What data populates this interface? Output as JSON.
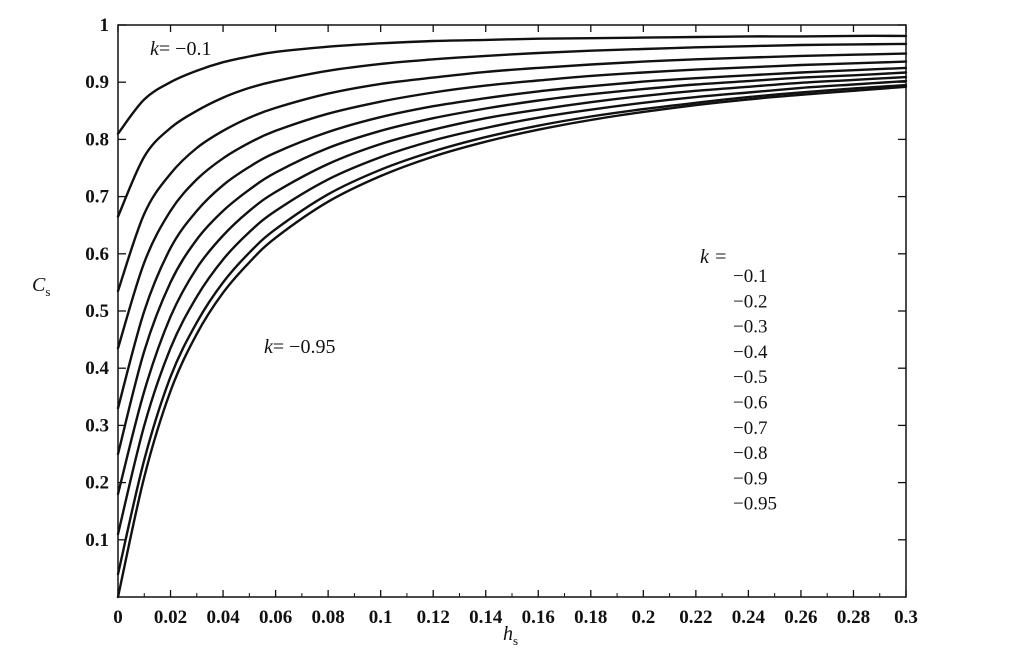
{
  "chart_data": {
    "type": "line",
    "xlabel": "h",
    "xlabel_sub": "s",
    "ylabel": "C",
    "ylabel_sub": "s",
    "xlim": [
      0,
      0.3
    ],
    "ylim": [
      0,
      1
    ],
    "x_ticks": [
      "0",
      "0.02",
      "0.04",
      "0.06",
      "0.08",
      "0.1",
      "0.12",
      "0.14",
      "0.16",
      "0.18",
      "0.2",
      "0.22",
      "0.24",
      "0.26",
      "0.28",
      "0.3"
    ],
    "y_ticks": [
      "0.1",
      "0.2",
      "0.3",
      "0.4",
      "0.5",
      "0.6",
      "0.7",
      "0.8",
      "0.9",
      "1"
    ],
    "grid": false,
    "legend_title": "k =",
    "legend_entries": [
      "−0.1",
      "−0.2",
      "−0.3",
      "−0.4",
      "−0.5",
      "−0.6",
      "−0.7",
      "−0.8",
      "−0.9",
      "−0.95"
    ],
    "annotation_top_k": "k",
    "annotation_top_val": "= −0.1",
    "annotation_bottom_k": "k",
    "annotation_bottom_val": "= −0.95",
    "x": [
      0,
      0.01,
      0.02,
      0.03,
      0.04,
      0.05,
      0.06,
      0.08,
      0.1,
      0.12,
      0.14,
      0.16,
      0.18,
      0.2,
      0.22,
      0.24,
      0.26,
      0.28,
      0.3
    ],
    "series": [
      {
        "k": -0.1,
        "values": [
          0.81,
          0.87,
          0.9,
          0.92,
          0.935,
          0.945,
          0.953,
          0.962,
          0.968,
          0.972,
          0.974,
          0.976,
          0.977,
          0.978,
          0.979,
          0.98,
          0.98,
          0.981,
          0.981
        ]
      },
      {
        "k": -0.2,
        "values": [
          0.665,
          0.77,
          0.82,
          0.85,
          0.873,
          0.89,
          0.902,
          0.92,
          0.932,
          0.94,
          0.946,
          0.951,
          0.955,
          0.958,
          0.961,
          0.963,
          0.965,
          0.966,
          0.967
        ]
      },
      {
        "k": -0.3,
        "values": [
          0.535,
          0.67,
          0.74,
          0.785,
          0.815,
          0.838,
          0.855,
          0.88,
          0.897,
          0.908,
          0.918,
          0.925,
          0.931,
          0.936,
          0.94,
          0.943,
          0.946,
          0.948,
          0.95
        ]
      },
      {
        "k": -0.4,
        "values": [
          0.435,
          0.585,
          0.675,
          0.73,
          0.767,
          0.794,
          0.815,
          0.845,
          0.866,
          0.882,
          0.894,
          0.903,
          0.911,
          0.917,
          0.922,
          0.926,
          0.93,
          0.933,
          0.936
        ]
      },
      {
        "k": -0.5,
        "values": [
          0.33,
          0.5,
          0.61,
          0.675,
          0.72,
          0.752,
          0.777,
          0.813,
          0.839,
          0.858,
          0.872,
          0.884,
          0.893,
          0.901,
          0.907,
          0.912,
          0.917,
          0.921,
          0.925
        ]
      },
      {
        "k": -0.6,
        "values": [
          0.25,
          0.43,
          0.55,
          0.625,
          0.675,
          0.712,
          0.742,
          0.785,
          0.815,
          0.837,
          0.854,
          0.868,
          0.879,
          0.888,
          0.896,
          0.902,
          0.908,
          0.912,
          0.917
        ]
      },
      {
        "k": -0.7,
        "values": [
          0.18,
          0.36,
          0.49,
          0.575,
          0.632,
          0.675,
          0.708,
          0.757,
          0.792,
          0.817,
          0.837,
          0.852,
          0.865,
          0.876,
          0.885,
          0.892,
          0.899,
          0.904,
          0.909
        ]
      },
      {
        "k": -0.8,
        "values": [
          0.11,
          0.3,
          0.435,
          0.525,
          0.59,
          0.638,
          0.675,
          0.73,
          0.769,
          0.798,
          0.82,
          0.838,
          0.852,
          0.864,
          0.874,
          0.882,
          0.89,
          0.896,
          0.902
        ]
      },
      {
        "k": -0.9,
        "values": [
          0.04,
          0.24,
          0.385,
          0.48,
          0.55,
          0.602,
          0.643,
          0.704,
          0.747,
          0.779,
          0.804,
          0.824,
          0.84,
          0.853,
          0.864,
          0.874,
          0.882,
          0.889,
          0.895
        ]
      },
      {
        "k": -0.95,
        "values": [
          0.0,
          0.21,
          0.36,
          0.46,
          0.532,
          0.585,
          0.628,
          0.691,
          0.736,
          0.77,
          0.796,
          0.817,
          0.834,
          0.848,
          0.86,
          0.87,
          0.878,
          0.885,
          0.892
        ]
      }
    ]
  }
}
